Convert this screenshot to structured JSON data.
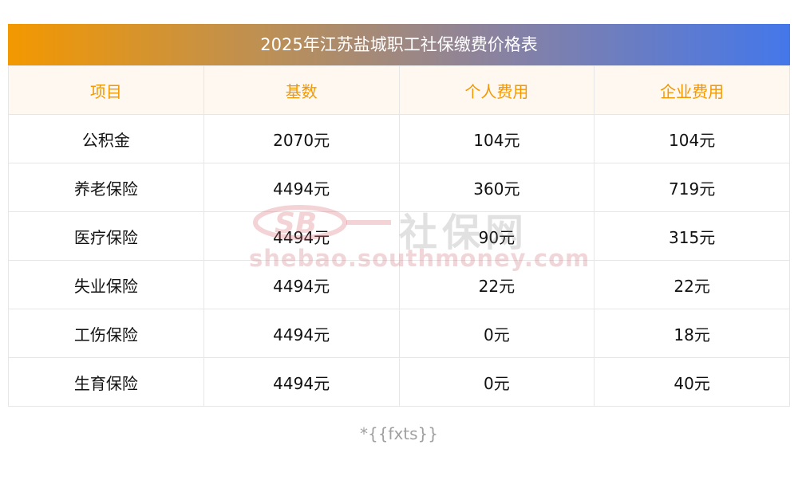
{
  "title": "2025年江苏盐城职工社保缴费价格表",
  "table": {
    "headers": [
      "项目",
      "基数",
      "个人费用",
      "企业费用"
    ],
    "rows": [
      [
        "公积金",
        "2070元",
        "104元",
        "104元"
      ],
      [
        "养老保险",
        "4494元",
        "360元",
        "719元"
      ],
      [
        "医疗保险",
        "4494元",
        "90元",
        "315元"
      ],
      [
        "失业保险",
        "4494元",
        "22元",
        "22元"
      ],
      [
        "工伤保险",
        "4494元",
        "0元",
        "18元"
      ],
      [
        "生育保险",
        "4494元",
        "0元",
        "40元"
      ]
    ]
  },
  "watermark": {
    "logo_text": "SB",
    "name": "社保网",
    "url": "shebao.southmoney.com"
  },
  "footnote": "*{{fxts}}",
  "colors": {
    "header_text": "#f39800",
    "header_bg": "#fff8f0",
    "title_gradient_start": "#f39800",
    "title_gradient_end": "#4477ea",
    "watermark": "#d47882"
  }
}
